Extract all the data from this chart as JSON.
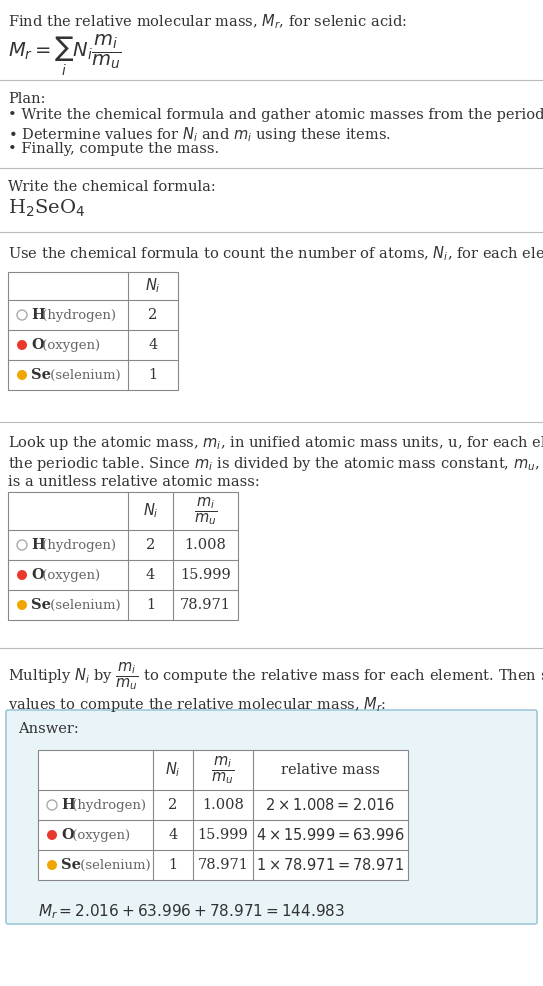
{
  "title_text": "Find the relative molecular mass, $M_r$, for selenic acid:",
  "formula_text": "$M_r = \\sum_i N_i \\dfrac{m_i}{m_u}$",
  "plan_header": "Plan:",
  "plan_bullets": [
    "• Write the chemical formula and gather atomic masses from the periodic table.",
    "• Determine values for $N_i$ and $m_i$ using these items.",
    "• Finally, compute the mass."
  ],
  "chemical_formula_header": "Write the chemical formula:",
  "chemical_formula": "H$_2$SeO$_4$",
  "count_header": "Use the chemical formula to count the number of atoms, $N_i$, for each element:",
  "table1_cols": [
    "",
    "$N_i$"
  ],
  "table1_rows": [
    [
      "H (hydrogen)",
      "2"
    ],
    [
      "O (oxygen)",
      "4"
    ],
    [
      "Se (selenium)",
      "1"
    ]
  ],
  "lookup_header": "Look up the atomic mass, $m_i$, in unified atomic mass units, u, for each element in\nthe periodic table. Since $m_i$ is divided by the atomic mass constant, $m_u$, the result\nis a unitless relative atomic mass:",
  "table2_cols": [
    "",
    "$N_i$",
    "$\\dfrac{m_i}{m_u}$"
  ],
  "table2_rows": [
    [
      "H (hydrogen)",
      "2",
      "1.008"
    ],
    [
      "O (oxygen)",
      "4",
      "15.999"
    ],
    [
      "Se (selenium)",
      "1",
      "78.971"
    ]
  ],
  "multiply_header": "Multiply $N_i$ by $\\dfrac{m_i}{m_u}$ to compute the relative mass for each element. Then sum those\nvalues to compute the relative molecular mass, $M_r$:",
  "answer_label": "Answer:",
  "table3_cols": [
    "",
    "$N_i$",
    "$\\dfrac{m_i}{m_u}$",
    "relative mass"
  ],
  "table3_rows": [
    [
      "H (hydrogen)",
      "2",
      "1.008",
      "$2 \\times 1.008 = 2.016$"
    ],
    [
      "O (oxygen)",
      "4",
      "15.999",
      "$4 \\times 15.999 = 63.996$"
    ],
    [
      "Se (selenium)",
      "1",
      "78.971",
      "$1 \\times 78.971 = 78.971$"
    ]
  ],
  "final_answer": "$M_r = 2.016 + 63.996 + 78.971 = 144.983$",
  "element_colors": [
    "none",
    "#e8392a",
    "#f0a500"
  ],
  "element_dot_colors": [
    "none",
    "#e8392a",
    "#f0a500"
  ],
  "bg_color": "#ffffff",
  "answer_box_color": "#e8f4f8",
  "answer_box_border": "#a0c8d8",
  "text_color": "#333333",
  "table_border_color": "#888888",
  "fig_width": 5.43,
  "fig_height": 9.86,
  "dpi": 100
}
